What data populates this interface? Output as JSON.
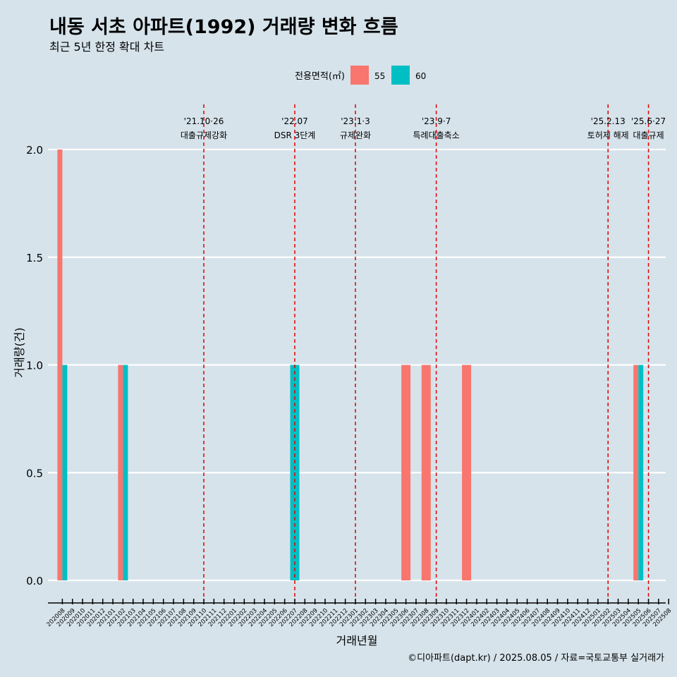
{
  "title": "내동 서초 아파트(1992) 거래량 변화 흐름",
  "subtitle": "최근 5년 한정 확대 차트",
  "caption": "©디아파트(dapt.kr) / 2025.08.05 / 자료=국토교통부 실거래가",
  "colors": {
    "background": "#d6e3eb",
    "s55": "#f8766d",
    "s60": "#00bfc4",
    "policy_line": "#e00000",
    "grid": "#ffffff"
  },
  "chart_data": {
    "type": "bar",
    "xlabel": "거래년월",
    "ylabel": "거래량(건)",
    "ylim": [
      0,
      2
    ],
    "yticks": [
      "0.0",
      "0.5",
      "1.0",
      "1.5",
      "2.0"
    ],
    "legend": {
      "title": "전용면적(㎡)",
      "position": "top"
    },
    "categories": [
      "202008",
      "202009",
      "202010",
      "202011",
      "202012",
      "202101",
      "202102",
      "202103",
      "202104",
      "202105",
      "202106",
      "202107",
      "202108",
      "202109",
      "202110",
      "202111",
      "202112",
      "202201",
      "202202",
      "202203",
      "202204",
      "202205",
      "202206",
      "202207",
      "202208",
      "202209",
      "202210",
      "202211",
      "202212",
      "202301",
      "202302",
      "202303",
      "202304",
      "202305",
      "202306",
      "202307",
      "202308",
      "202309",
      "202310",
      "202311",
      "202312",
      "202401",
      "202402",
      "202403",
      "202404",
      "202405",
      "202406",
      "202407",
      "202408",
      "202409",
      "202410",
      "202411",
      "202412",
      "202501",
      "202502",
      "202503",
      "202504",
      "202505",
      "202506",
      "202507",
      "202508"
    ],
    "series": [
      {
        "name": "55",
        "color": "#f8766d",
        "points": [
          {
            "x": "202008",
            "y": 2
          },
          {
            "x": "202102",
            "y": 1
          },
          {
            "x": "202306",
            "y": 1
          },
          {
            "x": "202308",
            "y": 1
          },
          {
            "x": "202312",
            "y": 1
          },
          {
            "x": "202505",
            "y": 1
          }
        ]
      },
      {
        "name": "60",
        "color": "#00bfc4",
        "points": [
          {
            "x": "202008",
            "y": 1
          },
          {
            "x": "202102",
            "y": 1
          },
          {
            "x": "202207",
            "y": 1
          },
          {
            "x": "202505",
            "y": 1
          }
        ]
      }
    ],
    "single_month_wide": [
      "202207",
      "202306",
      "202308",
      "202312"
    ],
    "events": [
      {
        "date_label": "'21.10·26",
        "desc": "대출규제강화",
        "x": "202110"
      },
      {
        "date_label": "'22.07",
        "desc": "DSR 3단계",
        "x": "202207"
      },
      {
        "date_label": "'23.1·3",
        "desc": "규제완화",
        "x": "202301"
      },
      {
        "date_label": "'23.9·7",
        "desc": "특례대출축소",
        "x": "202309"
      },
      {
        "date_label": "'25.2.13",
        "desc": "토허제 해제",
        "x": "202502"
      },
      {
        "date_label": "'25.6·27",
        "desc": "대출규제",
        "x": "202506"
      }
    ]
  }
}
